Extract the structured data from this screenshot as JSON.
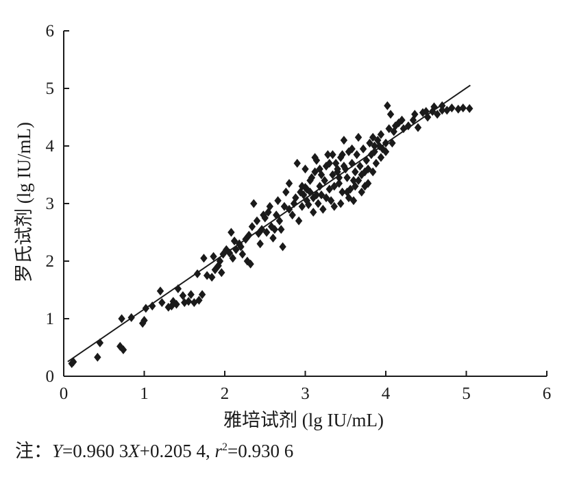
{
  "chart_data": {
    "type": "scatter",
    "title": "",
    "xlabel": "雅培试剂 (lg IU/mL)",
    "ylabel": "罗氏试剂 (lg IU/mL)",
    "xlim": [
      0,
      6
    ],
    "ylim": [
      0,
      6
    ],
    "x_ticks": [
      "0",
      "1",
      "2",
      "3",
      "4",
      "5",
      "6"
    ],
    "y_ticks": [
      "0",
      "1",
      "2",
      "3",
      "4",
      "5",
      "6"
    ],
    "grid": false,
    "legend": "none",
    "marker": "diamond",
    "marker_color": "#1a1a1a",
    "fit_line": {
      "slope": 0.9603,
      "intercept": 0.2054,
      "x_range": [
        0.05,
        5.05
      ]
    },
    "points": [
      [
        0.1,
        0.22
      ],
      [
        0.12,
        0.25
      ],
      [
        0.45,
        0.58
      ],
      [
        0.42,
        0.33
      ],
      [
        0.7,
        0.52
      ],
      [
        0.74,
        0.46
      ],
      [
        0.72,
        1.0
      ],
      [
        0.84,
        1.02
      ],
      [
        0.98,
        0.92
      ],
      [
        1.0,
        0.97
      ],
      [
        1.02,
        1.18
      ],
      [
        1.1,
        1.22
      ],
      [
        1.2,
        1.48
      ],
      [
        1.22,
        1.28
      ],
      [
        1.3,
        1.2
      ],
      [
        1.36,
        1.3
      ],
      [
        1.4,
        1.25
      ],
      [
        1.42,
        1.52
      ],
      [
        1.48,
        1.4
      ],
      [
        1.55,
        1.3
      ],
      [
        1.62,
        1.28
      ],
      [
        1.68,
        1.32
      ],
      [
        1.66,
        1.78
      ],
      [
        1.72,
        1.42
      ],
      [
        1.74,
        2.05
      ],
      [
        1.78,
        1.75
      ],
      [
        1.84,
        1.72
      ],
      [
        1.86,
        2.08
      ],
      [
        1.92,
        1.92
      ],
      [
        1.98,
        2.12
      ],
      [
        1.96,
        1.8
      ],
      [
        2.02,
        2.2
      ],
      [
        2.06,
        2.14
      ],
      [
        2.08,
        2.5
      ],
      [
        2.1,
        2.05
      ],
      [
        2.14,
        2.2
      ],
      [
        2.18,
        2.3
      ],
      [
        2.22,
        2.12
      ],
      [
        2.26,
        2.38
      ],
      [
        2.28,
        2.0
      ],
      [
        2.32,
        1.95
      ],
      [
        2.34,
        2.6
      ],
      [
        2.36,
        3.0
      ],
      [
        2.4,
        2.7
      ],
      [
        2.42,
        2.48
      ],
      [
        2.46,
        2.55
      ],
      [
        2.5,
        2.75
      ],
      [
        2.54,
        2.85
      ],
      [
        2.58,
        2.6
      ],
      [
        2.6,
        2.4
      ],
      [
        2.64,
        2.8
      ],
      [
        2.66,
        3.05
      ],
      [
        2.7,
        2.55
      ],
      [
        2.72,
        2.25
      ],
      [
        2.74,
        2.95
      ],
      [
        2.76,
        3.2
      ],
      [
        2.8,
        3.35
      ],
      [
        2.84,
        2.8
      ],
      [
        2.88,
        3.1
      ],
      [
        2.9,
        3.7
      ],
      [
        2.92,
        2.7
      ],
      [
        2.96,
        2.95
      ],
      [
        2.98,
        3.15
      ],
      [
        3.0,
        3.28
      ],
      [
        3.02,
        3.05
      ],
      [
        3.04,
        2.98
      ],
      [
        3.06,
        3.2
      ],
      [
        3.08,
        3.45
      ],
      [
        3.1,
        3.1
      ],
      [
        3.12,
        3.55
      ],
      [
        3.14,
        3.75
      ],
      [
        3.16,
        3.0
      ],
      [
        3.18,
        3.3
      ],
      [
        3.2,
        3.15
      ],
      [
        3.22,
        2.9
      ],
      [
        3.24,
        3.4
      ],
      [
        3.26,
        3.65
      ],
      [
        3.28,
        3.85
      ],
      [
        3.3,
        3.25
      ],
      [
        3.32,
        3.05
      ],
      [
        3.34,
        3.5
      ],
      [
        3.36,
        2.95
      ],
      [
        3.38,
        3.7
      ],
      [
        3.4,
        3.55
      ],
      [
        3.42,
        3.35
      ],
      [
        3.44,
        3.8
      ],
      [
        3.46,
        3.2
      ],
      [
        3.48,
        4.1
      ],
      [
        3.5,
        3.6
      ],
      [
        3.52,
        3.45
      ],
      [
        3.54,
        3.9
      ],
      [
        3.56,
        3.25
      ],
      [
        3.58,
        3.7
      ],
      [
        3.6,
        3.05
      ],
      [
        3.62,
        3.55
      ],
      [
        3.64,
        3.85
      ],
      [
        3.66,
        3.4
      ],
      [
        3.68,
        3.65
      ],
      [
        3.7,
        3.5
      ],
      [
        3.72,
        3.95
      ],
      [
        3.74,
        3.3
      ],
      [
        3.76,
        3.75
      ],
      [
        3.78,
        3.6
      ],
      [
        3.8,
        4.05
      ],
      [
        3.82,
        3.85
      ],
      [
        3.84,
        4.15
      ],
      [
        3.86,
        3.9
      ],
      [
        3.88,
        3.7
      ],
      [
        3.9,
        4.1
      ],
      [
        3.92,
        4.0
      ],
      [
        3.94,
        4.2
      ],
      [
        3.96,
        3.95
      ],
      [
        4.0,
        4.05
      ],
      [
        4.02,
        4.7
      ],
      [
        4.04,
        4.3
      ],
      [
        4.06,
        4.55
      ],
      [
        4.1,
        4.25
      ],
      [
        4.16,
        4.4
      ],
      [
        4.22,
        4.3
      ],
      [
        4.28,
        4.35
      ],
      [
        4.34,
        4.45
      ],
      [
        4.4,
        4.32
      ],
      [
        4.46,
        4.58
      ],
      [
        4.52,
        4.5
      ],
      [
        4.58,
        4.6
      ],
      [
        4.64,
        4.55
      ],
      [
        4.7,
        4.7
      ],
      [
        4.76,
        4.62
      ],
      [
        4.82,
        4.66
      ],
      [
        4.9,
        4.64
      ],
      [
        4.96,
        4.66
      ],
      [
        5.04,
        4.65
      ],
      [
        2.86,
        3.0
      ],
      [
        2.94,
        3.2
      ],
      [
        3.1,
        2.85
      ],
      [
        3.18,
        3.6
      ],
      [
        3.26,
        3.1
      ],
      [
        3.36,
        3.3
      ],
      [
        3.44,
        3.0
      ],
      [
        3.52,
        3.2
      ],
      [
        3.6,
        3.4
      ],
      [
        3.7,
        3.2
      ],
      [
        3.78,
        3.35
      ],
      [
        3.84,
        3.55
      ],
      [
        3.12,
        3.8
      ],
      [
        3.0,
        3.6
      ],
      [
        2.8,
        2.9
      ],
      [
        2.68,
        2.7
      ],
      [
        2.52,
        2.5
      ],
      [
        2.44,
        2.3
      ],
      [
        2.3,
        2.45
      ],
      [
        2.2,
        2.25
      ],
      [
        2.12,
        2.35
      ],
      [
        1.94,
        2.0
      ],
      [
        1.88,
        1.85
      ],
      [
        3.66,
        4.15
      ],
      [
        3.58,
        3.95
      ],
      [
        3.46,
        3.85
      ],
      [
        3.4,
        3.6
      ],
      [
        3.3,
        3.7
      ],
      [
        3.2,
        3.5
      ],
      [
        3.06,
        3.4
      ],
      [
        2.96,
        3.3
      ],
      [
        3.86,
        4.0
      ],
      [
        3.94,
        3.8
      ],
      [
        4.0,
        3.9
      ],
      [
        4.08,
        4.05
      ],
      [
        3.74,
        3.55
      ],
      [
        3.62,
        3.3
      ],
      [
        3.48,
        3.65
      ],
      [
        3.34,
        3.85
      ],
      [
        2.62,
        2.55
      ],
      [
        2.56,
        2.95
      ],
      [
        2.48,
        2.8
      ],
      [
        1.58,
        1.42
      ],
      [
        1.5,
        1.28
      ],
      [
        1.34,
        1.22
      ],
      [
        3.54,
        3.1
      ],
      [
        3.42,
        3.45
      ],
      [
        3.14,
        3.15
      ],
      [
        3.02,
        3.25
      ],
      [
        4.12,
        4.35
      ],
      [
        4.2,
        4.45
      ],
      [
        4.36,
        4.55
      ],
      [
        4.5,
        4.6
      ],
      [
        4.6,
        4.68
      ],
      [
        4.7,
        4.62
      ]
    ],
    "note": {
      "prefix": "注：",
      "y_var": "Y",
      "eq_mid": "=0.960 3",
      "x_var": "X",
      "eq_end": "+0.205 4, ",
      "r_var": "r",
      "r_sup": "2",
      "r_val": "=0.930 6"
    }
  }
}
